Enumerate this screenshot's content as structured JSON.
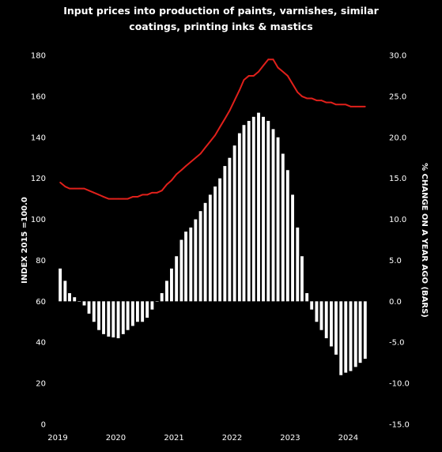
{
  "chart_data": {
    "type": "bar+line",
    "title_lines": [
      "Input prices into production of paints, varnishes, similar",
      "coatings, printing inks & mastics"
    ],
    "y_left_label": "INDEX 2015 =100.0",
    "y_right_label": "% CHANGE ON A YEAR AGO  (BARS)",
    "y_left_range": [
      0,
      180
    ],
    "y_right_range": [
      -15,
      30
    ],
    "y_left_ticks": [
      "0",
      "20",
      "40",
      "60",
      "80",
      "100",
      "120",
      "140",
      "160",
      "180"
    ],
    "y_right_ticks": [
      "-15.0",
      "-10.0",
      "-5.0",
      "0.0",
      "5.0",
      "10.0",
      "15.0",
      "20.0",
      "25.0",
      "30.0"
    ],
    "x_ticks": [
      "2019",
      "2020",
      "2021",
      "2022",
      "2023",
      "2024"
    ],
    "grid": "none",
    "legend": "none",
    "colors": {
      "background": "#000000",
      "bars": "#ffffff",
      "line": "#e0201b",
      "text": "#ffffff"
    },
    "start": "2019-01",
    "series": [
      {
        "kind": "bar",
        "axis": "right",
        "values": [
          4.0,
          2.5,
          1.0,
          0.5,
          0.0,
          -0.5,
          -1.5,
          -2.5,
          -3.5,
          -4.0,
          -4.3,
          -4.4,
          -4.5,
          -4.0,
          -3.5,
          -3.0,
          -2.5,
          -2.5,
          -2.0,
          -1.0,
          0.0,
          1.0,
          2.5,
          4.0,
          5.5,
          7.5,
          8.5,
          9.0,
          10.0,
          11.0,
          12.0,
          13.0,
          14.0,
          15.0,
          16.5,
          17.5,
          19.0,
          20.5,
          21.5,
          22.0,
          22.5,
          23.0,
          22.5,
          22.0,
          21.0,
          20.0,
          18.0,
          16.0,
          13.0,
          9.0,
          5.5,
          1.0,
          -1.0,
          -2.5,
          -3.5,
          -4.5,
          -5.5,
          -6.5,
          -9.0,
          -8.7,
          -8.5,
          -8.0,
          -7.5,
          -7.0
        ],
        "x_values": [
          "2019-01",
          "2019-02",
          "2019-03",
          "2019-04",
          "2019-05",
          "2019-06",
          "2019-07",
          "2019-08",
          "2019-09",
          "2019-10",
          "2019-11",
          "2019-12",
          "2020-01",
          "2020-02",
          "2020-03",
          "2020-04",
          "2020-05",
          "2020-06",
          "2020-07",
          "2020-08",
          "2020-09",
          "2020-10",
          "2020-11",
          "2020-12",
          "2021-01",
          "2021-02",
          "2021-03",
          "2021-04",
          "2021-05",
          "2021-06",
          "2021-07",
          "2021-08",
          "2021-09",
          "2021-10",
          "2021-11",
          "2021-12",
          "2022-01",
          "2022-02",
          "2022-03",
          "2022-04",
          "2022-05",
          "2022-06",
          "2022-07",
          "2022-08",
          "2022-09",
          "2022-10",
          "2022-11",
          "2022-12",
          "2023-01",
          "2023-02",
          "2023-03",
          "2023-04",
          "2023-05",
          "2023-06",
          "2023-07",
          "2023-08",
          "2023-09",
          "2023-10",
          "2023-11",
          "2023-12",
          "2024-01",
          "2024-02",
          "2024-03",
          "2024-04"
        ]
      },
      {
        "kind": "line",
        "axis": "left",
        "values": [
          118,
          116,
          115,
          115,
          115,
          115,
          114,
          113,
          112,
          111,
          110,
          110,
          110,
          110,
          110,
          111,
          111,
          112,
          112,
          113,
          113,
          114,
          117,
          119,
          122,
          124,
          126,
          128,
          130,
          132,
          135,
          138,
          141,
          145,
          149,
          153,
          158,
          163,
          168,
          170,
          170,
          172,
          175,
          178,
          178,
          174,
          172,
          170,
          166,
          162,
          160,
          159,
          159,
          158,
          158,
          157,
          157,
          156,
          156,
          156,
          155,
          155,
          155,
          155
        ],
        "x_values": [
          "2019-01",
          "2019-02",
          "2019-03",
          "2019-04",
          "2019-05",
          "2019-06",
          "2019-07",
          "2019-08",
          "2019-09",
          "2019-10",
          "2019-11",
          "2019-12",
          "2020-01",
          "2020-02",
          "2020-03",
          "2020-04",
          "2020-05",
          "2020-06",
          "2020-07",
          "2020-08",
          "2020-09",
          "2020-10",
          "2020-11",
          "2020-12",
          "2021-01",
          "2021-02",
          "2021-03",
          "2021-04",
          "2021-05",
          "2021-06",
          "2021-07",
          "2021-08",
          "2021-09",
          "2021-10",
          "2021-11",
          "2021-12",
          "2022-01",
          "2022-02",
          "2022-03",
          "2022-04",
          "2022-05",
          "2022-06",
          "2022-07",
          "2022-08",
          "2022-09",
          "2022-10",
          "2022-11",
          "2022-12",
          "2023-01",
          "2023-02",
          "2023-03",
          "2023-04",
          "2023-05",
          "2023-06",
          "2023-07",
          "2023-08",
          "2023-09",
          "2023-10",
          "2023-11",
          "2023-12",
          "2024-01",
          "2024-02",
          "2024-03",
          "2024-04"
        ]
      }
    ]
  }
}
